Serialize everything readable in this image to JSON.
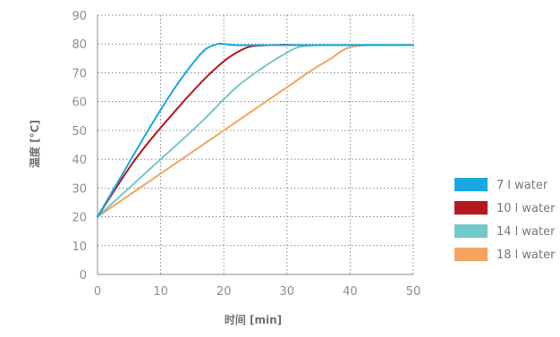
{
  "chart_data": {
    "type": "line",
    "title": "",
    "xlabel": "时间  [min]",
    "ylabel": "温度 [°C]",
    "xlim": [
      0,
      50
    ],
    "ylim": [
      0,
      90
    ],
    "x_ticks": [
      0,
      10,
      20,
      30,
      40,
      50
    ],
    "y_ticks": [
      0,
      10,
      20,
      30,
      40,
      50,
      60,
      70,
      80,
      90
    ],
    "grid": true,
    "legend_position": "right",
    "series": [
      {
        "name": "7 l water",
        "color": "#1aa7e4",
        "x": [
          0,
          4,
          8,
          12,
          15,
          17,
          19,
          20,
          22,
          26,
          50
        ],
        "y": [
          20,
          35,
          50,
          64,
          73,
          78,
          80,
          80,
          79.6,
          79.6,
          79.6
        ]
      },
      {
        "name": "10 l water",
        "color": "#b3191d",
        "x": [
          0,
          6,
          12,
          17,
          20,
          22,
          24,
          26,
          29,
          34,
          50
        ],
        "y": [
          20,
          40,
          56,
          68,
          74,
          77,
          79,
          79.5,
          79.7,
          79.6,
          79.6
        ]
      },
      {
        "name": "14 l water",
        "color": "#72c9c9",
        "x": [
          0,
          8,
          16,
          22,
          27,
          30,
          32,
          35,
          38,
          50
        ],
        "y": [
          20,
          36,
          52,
          65,
          73,
          77,
          79,
          79.6,
          79.7,
          79.7
        ]
      },
      {
        "name": "18 l water",
        "color": "#f4a460",
        "x": [
          0,
          10,
          20,
          30,
          34,
          37,
          39,
          41,
          44,
          50
        ],
        "y": [
          20,
          35,
          50,
          65,
          71,
          75,
          78,
          79.3,
          79.7,
          79.7
        ]
      }
    ]
  }
}
